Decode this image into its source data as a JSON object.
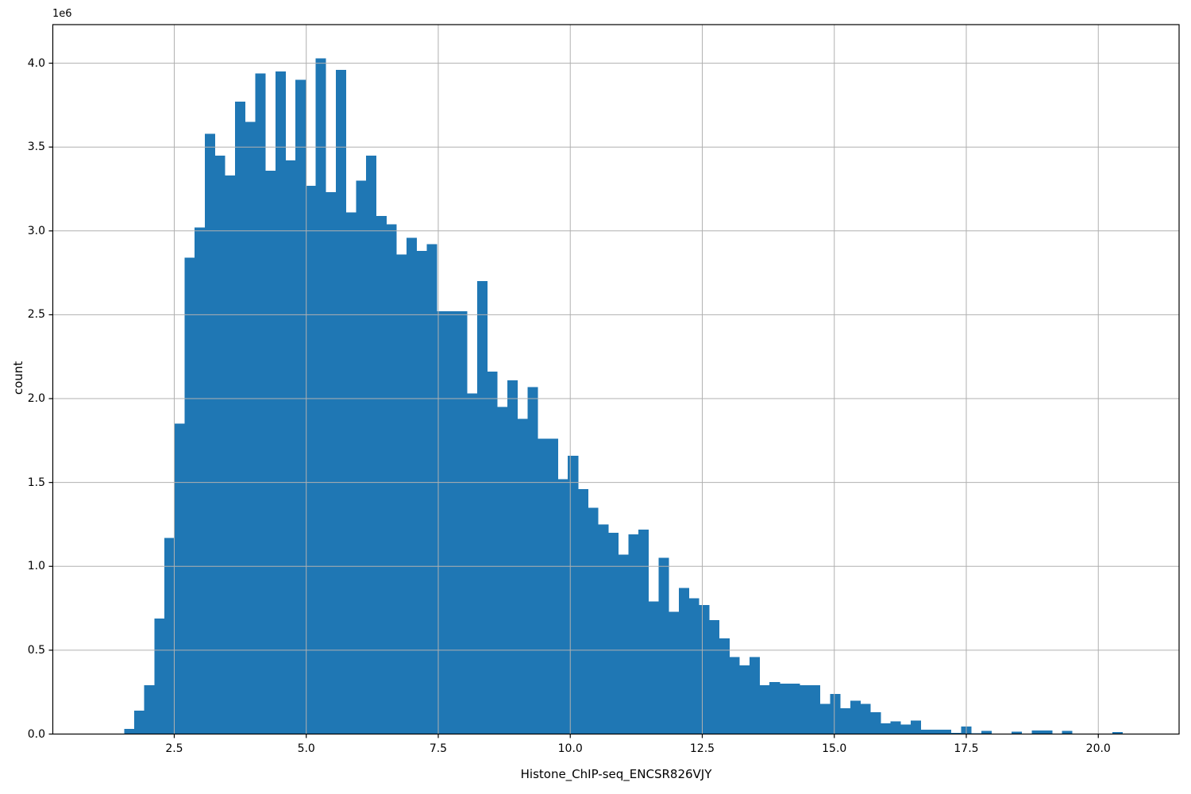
{
  "chart_data": {
    "type": "bar",
    "subtype": "histogram",
    "title": "",
    "xlabel": "Histone_ChIP-seq_ENCSR826VJY",
    "ylabel": "count",
    "y_offset_text": "1e6",
    "bins": {
      "start": 1.55,
      "width": 0.191,
      "count": 100
    },
    "heights_millions": [
      0.03,
      0.14,
      0.29,
      0.69,
      1.17,
      1.85,
      2.84,
      3.02,
      3.58,
      3.45,
      3.33,
      3.77,
      3.65,
      3.94,
      3.36,
      3.95,
      3.42,
      3.9,
      3.27,
      4.03,
      3.23,
      3.96,
      3.11,
      3.3,
      3.45,
      3.09,
      3.04,
      2.86,
      2.96,
      2.88,
      2.92,
      2.52,
      2.52,
      2.52,
      2.03,
      2.7,
      2.16,
      1.95,
      2.11,
      1.88,
      2.07,
      1.76,
      1.76,
      1.52,
      1.66,
      1.46,
      1.35,
      1.25,
      1.2,
      1.07,
      1.19,
      1.22,
      0.79,
      1.05,
      0.73,
      0.87,
      0.81,
      0.77,
      0.68,
      0.57,
      0.46,
      0.41,
      0.46,
      0.29,
      0.31,
      0.3,
      0.3,
      0.29,
      0.29,
      0.18,
      0.24,
      0.155,
      0.2,
      0.18,
      0.13,
      0.065,
      0.075,
      0.057,
      0.08,
      0.026,
      0.026,
      0.026,
      0.006,
      0.045,
      0.004,
      0.018,
      0.003,
      0.003,
      0.015,
      0.003,
      0.022,
      0.022,
      0.003,
      0.019,
      0.002,
      0.002,
      0.001,
      0.001,
      0.011,
      0.003
    ],
    "xlim": [
      0.2,
      21.53
    ],
    "ylim_millions": [
      0,
      4.23
    ],
    "xticks": {
      "values": [
        2.5,
        5.0,
        7.5,
        10.0,
        12.5,
        15.0,
        17.5,
        20.0
      ],
      "labels": [
        "2.5",
        "5.0",
        "7.5",
        "10.0",
        "12.5",
        "15.0",
        "17.5",
        "20.0"
      ]
    },
    "yticks": {
      "values": [
        0,
        0.5,
        1.0,
        1.5,
        2.0,
        2.5,
        3.0,
        3.5,
        4.0
      ],
      "labels": [
        "0.0",
        "0.5",
        "1.0",
        "1.5",
        "2.0",
        "2.5",
        "3.0",
        "3.5",
        "4.0"
      ]
    },
    "grid": true,
    "grid_above_bars": true,
    "legend": false,
    "colors": {
      "bar": "#1f77b4",
      "grid": "#b0b0b0",
      "spine": "#000000",
      "text": "#000000",
      "background": "#ffffff"
    }
  }
}
